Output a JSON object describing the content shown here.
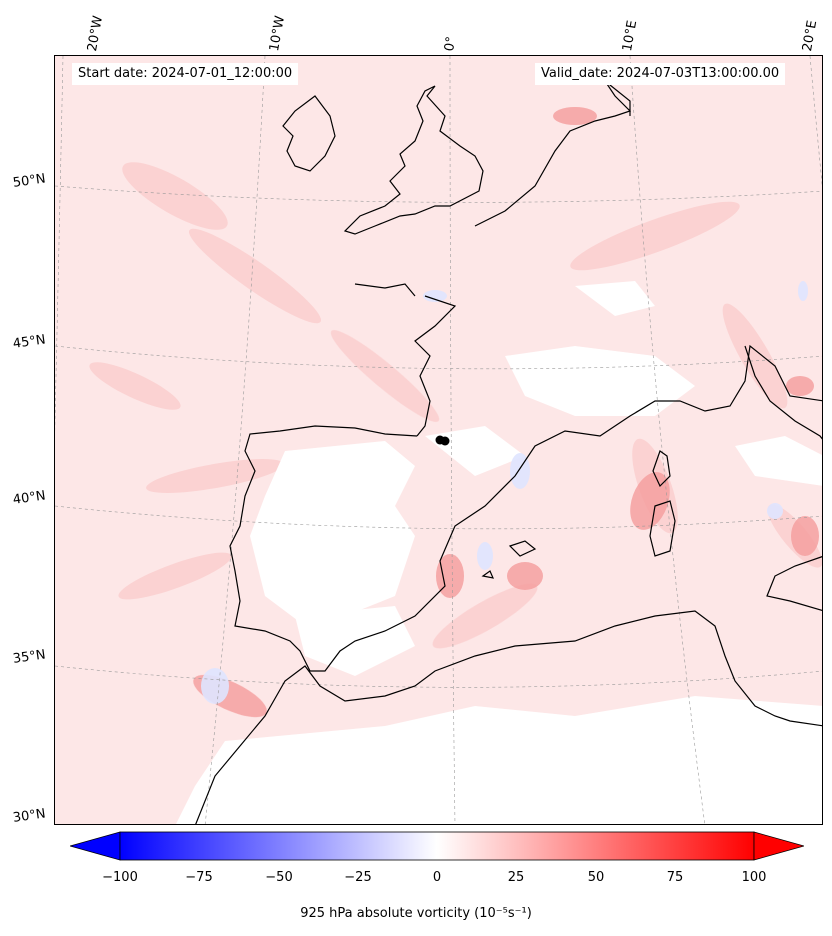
{
  "map": {
    "start_date": "Start date: 2024-07-01_12:00:00",
    "valid_date": "Valid_date: 2024-07-03T13:00:00.00",
    "lon_labels": [
      "20°W",
      "10°W",
      "0°",
      "10°E",
      "20°E"
    ],
    "lat_labels": [
      "50°N",
      "45°N",
      "40°N",
      "35°N",
      "30°N"
    ],
    "marker": "black dot near 42°N, 0°"
  },
  "colorbar": {
    "label": "925 hPa absolute vorticity (10⁻⁵s⁻¹)",
    "ticks": [
      "−100",
      "−75",
      "−50",
      "−25",
      "0",
      "25",
      "50",
      "75",
      "100"
    ],
    "min": -100,
    "max": 100,
    "low_color": "#0000ff",
    "high_color": "#ff0000",
    "extend": "both"
  },
  "colors": {
    "background": "#ffffff",
    "coastline": "#000000",
    "weak_positive": "#fde4e4",
    "moderate_positive": "#f9b3b3",
    "strong_positive": "#f37d7d",
    "weak_negative": "#e8ecff"
  }
}
